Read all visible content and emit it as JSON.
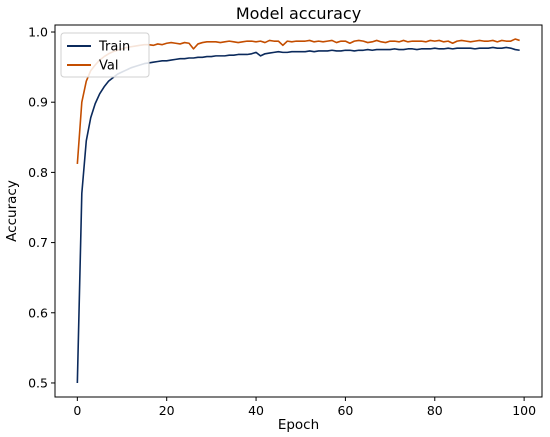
{
  "chart_data": {
    "type": "line",
    "title": "Model accuracy",
    "xlabel": "Epoch",
    "ylabel": "Accuracy",
    "xlim": [
      -5,
      104
    ],
    "ylim": [
      0.48,
      1.01
    ],
    "xticks": [
      0,
      20,
      40,
      60,
      80,
      100
    ],
    "yticks": [
      0.5,
      0.6,
      0.7,
      0.8,
      0.9,
      1.0
    ],
    "ytick_labels": [
      "0.5",
      "0.6",
      "0.7",
      "0.8",
      "0.9",
      "1.0"
    ],
    "grid": false,
    "legend_position": "upper-left",
    "x": [
      0,
      1,
      2,
      3,
      4,
      5,
      6,
      7,
      8,
      9,
      10,
      11,
      12,
      13,
      14,
      15,
      16,
      17,
      18,
      19,
      20,
      21,
      22,
      23,
      24,
      25,
      26,
      27,
      28,
      29,
      30,
      31,
      32,
      33,
      34,
      35,
      36,
      37,
      38,
      39,
      40,
      41,
      42,
      43,
      44,
      45,
      46,
      47,
      48,
      49,
      50,
      51,
      52,
      53,
      54,
      55,
      56,
      57,
      58,
      59,
      60,
      61,
      62,
      63,
      64,
      65,
      66,
      67,
      68,
      69,
      70,
      71,
      72,
      73,
      74,
      75,
      76,
      77,
      78,
      79,
      80,
      81,
      82,
      83,
      84,
      85,
      86,
      87,
      88,
      89,
      90,
      91,
      92,
      93,
      94,
      95,
      96,
      97,
      98,
      99
    ],
    "series": [
      {
        "name": "Train",
        "color": "#0b2a5c",
        "values": [
          0.5,
          0.77,
          0.845,
          0.878,
          0.898,
          0.912,
          0.922,
          0.93,
          0.935,
          0.94,
          0.943,
          0.946,
          0.949,
          0.951,
          0.953,
          0.955,
          0.956,
          0.957,
          0.958,
          0.959,
          0.959,
          0.96,
          0.961,
          0.962,
          0.962,
          0.963,
          0.963,
          0.964,
          0.964,
          0.965,
          0.965,
          0.966,
          0.966,
          0.966,
          0.967,
          0.967,
          0.968,
          0.968,
          0.968,
          0.969,
          0.971,
          0.966,
          0.969,
          0.97,
          0.971,
          0.972,
          0.971,
          0.971,
          0.972,
          0.972,
          0.972,
          0.972,
          0.973,
          0.972,
          0.973,
          0.973,
          0.973,
          0.974,
          0.973,
          0.973,
          0.974,
          0.974,
          0.973,
          0.974,
          0.974,
          0.975,
          0.974,
          0.975,
          0.975,
          0.975,
          0.975,
          0.976,
          0.975,
          0.975,
          0.976,
          0.976,
          0.975,
          0.976,
          0.976,
          0.976,
          0.977,
          0.976,
          0.976,
          0.977,
          0.976,
          0.977,
          0.977,
          0.977,
          0.977,
          0.976,
          0.977,
          0.977,
          0.977,
          0.978,
          0.977,
          0.977,
          0.978,
          0.977,
          0.975,
          0.974
        ]
      },
      {
        "name": "Val",
        "color": "#c44e00",
        "values": [
          0.812,
          0.9,
          0.93,
          0.945,
          0.953,
          0.96,
          0.965,
          0.969,
          0.972,
          0.974,
          0.976,
          0.978,
          0.979,
          0.98,
          0.981,
          0.982,
          0.982,
          0.981,
          0.983,
          0.982,
          0.984,
          0.985,
          0.984,
          0.983,
          0.985,
          0.984,
          0.976,
          0.983,
          0.985,
          0.986,
          0.986,
          0.986,
          0.985,
          0.986,
          0.987,
          0.986,
          0.985,
          0.986,
          0.987,
          0.987,
          0.986,
          0.987,
          0.985,
          0.988,
          0.987,
          0.987,
          0.981,
          0.987,
          0.986,
          0.987,
          0.987,
          0.987,
          0.988,
          0.986,
          0.987,
          0.986,
          0.987,
          0.988,
          0.985,
          0.987,
          0.987,
          0.984,
          0.987,
          0.988,
          0.987,
          0.985,
          0.986,
          0.988,
          0.986,
          0.985,
          0.987,
          0.987,
          0.986,
          0.988,
          0.986,
          0.987,
          0.987,
          0.987,
          0.986,
          0.988,
          0.987,
          0.988,
          0.986,
          0.987,
          0.984,
          0.987,
          0.988,
          0.987,
          0.986,
          0.987,
          0.988,
          0.987,
          0.987,
          0.988,
          0.986,
          0.988,
          0.987,
          0.987,
          0.99,
          0.988
        ]
      }
    ]
  }
}
